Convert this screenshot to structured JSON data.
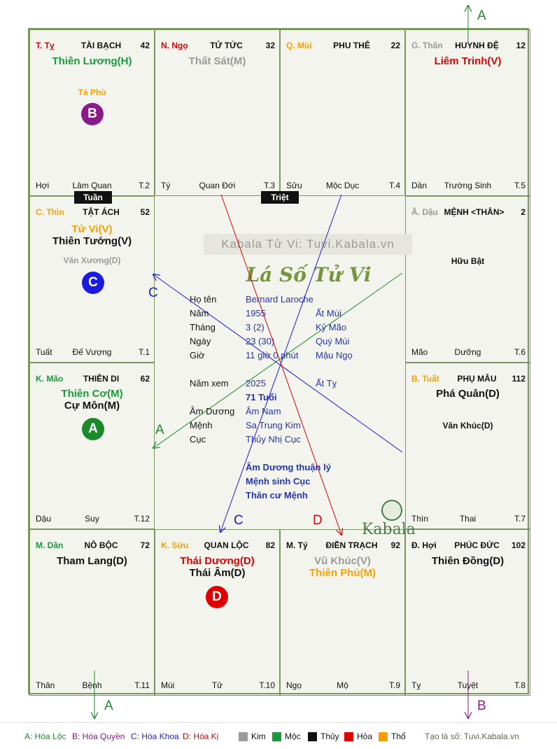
{
  "watermark": "Kabala Tử Vi: Tuvi.Kabala.vn",
  "title": "Lá Số Tử Vi",
  "brand": "Kabala",
  "tags": {
    "tuan": "Tuần",
    "triet": "Triệt"
  },
  "cells": [
    {
      "code": "T. Tỵ",
      "pname": "TÀI BẠCH",
      "num": "42",
      "main1": "Thiên Lương(H)",
      "minor1": "Tả Phù",
      "badge": "B",
      "bl": "Hợi",
      "bc": "Lâm Quan",
      "br": "T.2"
    },
    {
      "code": "N. Ngọ",
      "pname": "TỬ TỨC",
      "num": "32",
      "main1": "Thất Sát(M)",
      "bl": "Tý",
      "bc": "Quan Đới",
      "br": "T.3"
    },
    {
      "code": "Q. Mùi",
      "pname": "PHU THÊ",
      "num": "22",
      "bl": "Sửu",
      "bc": "Mộc Dục",
      "br": "T.4"
    },
    {
      "code": "G. Thân",
      "pname": "HUYNH ĐỆ",
      "num": "12",
      "main1": "Liêm Trinh(V)",
      "bl": "Dần",
      "bc": "Trường Sinh",
      "br": "T.5"
    },
    {
      "code": "C. Thìn",
      "pname": "TẬT ÁCH",
      "num": "52",
      "main1": "Tử Vi(V)",
      "main2": "Thiên Tướng(V)",
      "minor1": "Văn Xương(D)",
      "badge": "C",
      "bl": "Tuất",
      "bc": "Đế Vượng",
      "br": "T.1"
    },
    {
      "code": "Ã. Dậu",
      "pname": "MỆNH <THÂN>",
      "num": "2",
      "minor1": "Hữu Bật",
      "bl": "Mão",
      "bc": "Dưỡng",
      "br": "T.6"
    },
    {
      "code": "K. Mão",
      "pname": "THIÊN DI",
      "num": "62",
      "main1": "Thiên Cơ(M)",
      "main2": "Cự Môn(M)",
      "badge": "A",
      "bl": "Dậu",
      "bc": "Suy",
      "br": "T.12"
    },
    {
      "code": "B. Tuất",
      "pname": "PHỤ MẪU",
      "num": "112",
      "main1": "Phá Quân(D)",
      "minor1": "Văn Khúc(D)",
      "bl": "Thìn",
      "bc": "Thai",
      "br": "T.7"
    },
    {
      "code": "M. Dần",
      "pname": "NÔ BỘC",
      "num": "72",
      "main1": "Tham Lang(D)",
      "bl": "Thân",
      "bc": "Bệnh",
      "br": "T.11"
    },
    {
      "code": "K. Sửu",
      "pname": "QUAN LỘC",
      "num": "82",
      "main1": "Thái Dương(D)",
      "main2": "Thái Âm(D)",
      "badge": "D",
      "bl": "Mùi",
      "bc": "Tử",
      "br": "T.10"
    },
    {
      "code": "M. Tý",
      "pname": "ĐIỀN TRẠCH",
      "num": "92",
      "main1": "Vũ Khúc(V)",
      "main2": "Thiên Phủ(M)",
      "bl": "Ngọ",
      "bc": "Mộ",
      "br": "T.9"
    },
    {
      "code": "Đ. Hợi",
      "pname": "PHÚC ĐỨC",
      "num": "102",
      "main1": "Thiên Đồng(D)",
      "bl": "Tỵ",
      "bc": "Tuyệt",
      "br": "T.8"
    }
  ],
  "info": {
    "ho_ten_label": "Họ tên",
    "ho_ten": "Bernard Laroche",
    "nam_label": "Năm",
    "nam": "1955",
    "nam_can": "Ất Mùi",
    "thang_label": "Tháng",
    "thang": "3  (2)",
    "thang_can": "Kỷ Mão",
    "ngay_label": "Ngày",
    "ngay": "23  (30)",
    "ngay_can": "Quý Mùi",
    "gio_label": "Giờ",
    "gio": "11 giờ 0 phút",
    "gio_can": "Mậu Ngọ",
    "nam_xem_label": "Năm xem",
    "nam_xem": "2025",
    "nam_xem_can": "Ất Tỵ",
    "tuoi": "71 Tuổi",
    "am_duong_label": "Âm Dương",
    "am_duong": "Âm Nam",
    "menh_label": "Mệnh",
    "menh": "Sa Trung Kim",
    "cuc_label": "Cục",
    "cuc": "Thủy Nhị Cục",
    "note1": "Âm Dương thuận lý",
    "note2": "Mệnh sinh Cục",
    "note3": "Thân cư Mệnh"
  },
  "arrow_letters": {
    "a": "A",
    "b": "B",
    "c": "C",
    "d": "D"
  },
  "legend": {
    "a": "A: Hóa Lộc",
    "b": "B: Hóa Quyền",
    "c": "C: Hóa Khoa",
    "d": "D: Hóa Kị",
    "kim": "Kim",
    "moc": "Mộc",
    "thuy": "Thủy",
    "hoa": "Hỏa",
    "tho": "Thổ",
    "site": "Tạo lá số: Tuvi.Kabala.vn"
  },
  "colors": {
    "kim": "#999999",
    "moc": "#1a9a3a",
    "thuy": "#111111",
    "hoa": "#e00000",
    "tho": "#f5a000",
    "a": "#1a8a2a",
    "b": "#8a1a8a",
    "c": "#1a1ae0",
    "d": "#e00000"
  }
}
